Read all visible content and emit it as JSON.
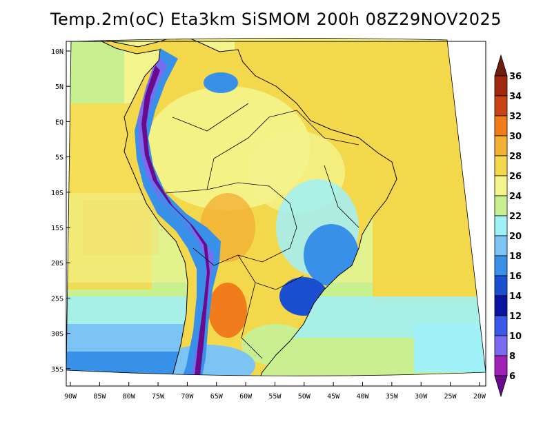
{
  "title": "Temp.2m(oC) Eta3km SiSMOM 200h 08Z29NOV2025",
  "map": {
    "variable": "2 m temperature",
    "units": "oC",
    "region": "South America",
    "lon_range": [
      -90,
      -20
    ],
    "lat_range": [
      -38,
      12
    ],
    "lat_ticks": [
      "10N",
      "5N",
      "EQ",
      "5S",
      "10S",
      "15S",
      "20S",
      "25S",
      "30S",
      "35S"
    ],
    "lon_ticks": [
      "90W",
      "85W",
      "80W",
      "75W",
      "70W",
      "65W",
      "60W",
      "55W",
      "50W",
      "45W",
      "40W",
      "35W",
      "30W",
      "25W",
      "20W"
    ]
  },
  "colorbar": {
    "levels": [
      "6",
      "8",
      "10",
      "12",
      "14",
      "16",
      "18",
      "20",
      "22",
      "24",
      "26",
      "28",
      "30",
      "32",
      "34",
      "36"
    ],
    "colors": [
      "#6a0a8c",
      "#a020b8",
      "#7a6cf0",
      "#3a58e8",
      "#0a14a0",
      "#1a50d0",
      "#3890e8",
      "#7cc4f4",
      "#a0f0f8",
      "#c8f090",
      "#f4f48c",
      "#f4d84c",
      "#f4b034",
      "#f07c1c",
      "#c84414",
      "#a02810",
      "#6c1e10"
    ]
  }
}
